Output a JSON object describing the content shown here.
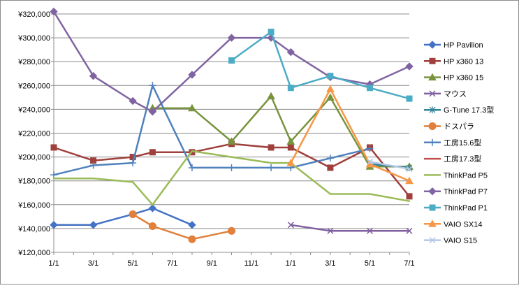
{
  "chart_data": {
    "type": "line",
    "x": [
      0,
      1,
      2,
      3,
      4,
      5,
      6,
      7,
      8,
      9,
      10,
      11,
      12,
      13,
      14,
      15,
      16,
      17,
      18
    ],
    "xticks": [
      "1/1",
      "3/1",
      "5/1",
      "7/1",
      "9/1",
      "11/1",
      "1/1",
      "3/1",
      "5/1",
      "7/1"
    ],
    "ylim": [
      120000,
      320000
    ],
    "yticks": [
      "¥120,000",
      "¥140,000",
      "¥160,000",
      "¥180,000",
      "¥200,000",
      "¥220,000",
      "¥240,000",
      "¥260,000",
      "¥280,000",
      "¥300,000",
      "¥320,000"
    ],
    "grid": true,
    "legend": "right",
    "series": [
      {
        "name": "HP Pavilion",
        "color": "#4472c4",
        "marker": "diamond",
        "points": [
          [
            0,
            143000
          ],
          [
            2,
            143000
          ],
          [
            4,
            152000
          ],
          [
            5,
            157000
          ],
          [
            7,
            143000
          ]
        ]
      },
      {
        "name": "HP x360 13",
        "color": "#a0403c",
        "marker": "square",
        "points": [
          [
            0,
            208000
          ],
          [
            2,
            197000
          ],
          [
            4,
            200000
          ],
          [
            5,
            204000
          ],
          [
            7,
            204000
          ],
          [
            9,
            211000
          ],
          [
            11,
            208000
          ],
          [
            12,
            208000
          ],
          [
            14,
            191000
          ],
          [
            16,
            208000
          ],
          [
            18,
            167000
          ]
        ]
      },
      {
        "name": "HP x360 15",
        "color": "#77933c",
        "marker": "triangle",
        "points": [
          [
            5,
            241000
          ],
          [
            7,
            241000
          ],
          [
            9,
            213000
          ],
          [
            11,
            251000
          ],
          [
            12,
            213000
          ],
          [
            14,
            250000
          ],
          [
            16,
            192000
          ],
          [
            18,
            192000
          ]
        ]
      },
      {
        "name": "マウス",
        "color": "#7f5fa0",
        "marker": "x",
        "points": [
          [
            12,
            143000
          ],
          [
            14,
            138000
          ],
          [
            16,
            138000
          ],
          [
            18,
            138000
          ]
        ]
      },
      {
        "name": "G-Tune 17.3型",
        "color": "#31849b",
        "marker": "star",
        "points": [
          [
            16,
            194000
          ],
          [
            18,
            191000
          ]
        ]
      },
      {
        "name": "ドスパラ",
        "color": "#e0803a",
        "marker": "circle",
        "points": [
          [
            4,
            152000
          ],
          [
            5,
            142000
          ],
          [
            7,
            131000
          ],
          [
            9,
            138000
          ]
        ]
      },
      {
        "name": "工房15.6型",
        "color": "#4f81bd",
        "marker": "plus",
        "points": [
          [
            0,
            185000
          ],
          [
            2,
            193000
          ],
          [
            4,
            195000
          ],
          [
            5,
            260000
          ],
          [
            7,
            191000
          ],
          [
            9,
            191000
          ],
          [
            11,
            191000
          ],
          [
            12,
            191000
          ],
          [
            14,
            199000
          ],
          [
            16,
            207000
          ]
        ]
      },
      {
        "name": "工房17.3型",
        "color": "#c0504d",
        "marker": "none",
        "points": []
      },
      {
        "name": "ThinkPad P5",
        "color": "#9bbb59",
        "marker": "none",
        "points": [
          [
            0,
            182000
          ],
          [
            2,
            182000
          ],
          [
            4,
            179000
          ],
          [
            5,
            160000
          ],
          [
            7,
            205000
          ],
          [
            9,
            200000
          ],
          [
            11,
            195000
          ],
          [
            12,
            195000
          ],
          [
            14,
            169000
          ],
          [
            16,
            169000
          ],
          [
            18,
            163000
          ]
        ]
      },
      {
        "name": "ThinkPad P7",
        "color": "#8064a2",
        "marker": "diamond",
        "points": [
          [
            0,
            322000
          ],
          [
            2,
            268000
          ],
          [
            4,
            247000
          ],
          [
            5,
            238000
          ],
          [
            7,
            269000
          ],
          [
            9,
            300000
          ],
          [
            11,
            300000
          ],
          [
            12,
            288000
          ],
          [
            14,
            267000
          ],
          [
            16,
            261000
          ],
          [
            18,
            276000
          ]
        ]
      },
      {
        "name": "ThinkPad P1",
        "color": "#4bacc6",
        "marker": "square",
        "points": [
          [
            9,
            281000
          ],
          [
            11,
            305000
          ],
          [
            12,
            258000
          ],
          [
            14,
            268000
          ],
          [
            16,
            258000
          ],
          [
            18,
            249000
          ]
        ]
      },
      {
        "name": "VAIO SX14",
        "color": "#f79646",
        "marker": "triangle",
        "points": [
          [
            12,
            195000
          ],
          [
            14,
            257000
          ],
          [
            16,
            194000
          ],
          [
            18,
            180000
          ]
        ]
      },
      {
        "name": "VAIO S15",
        "color": "#b3c7e6",
        "marker": "x",
        "points": [
          [
            16,
            196000
          ],
          [
            18,
            190000
          ]
        ]
      }
    ]
  }
}
